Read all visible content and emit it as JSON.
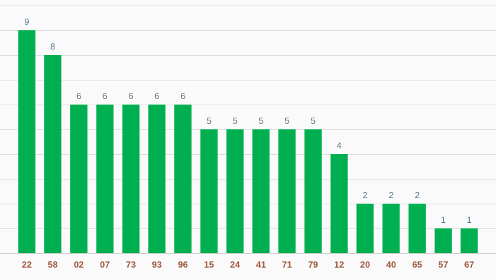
{
  "chart_data": {
    "type": "bar",
    "title": "",
    "xlabel": "",
    "ylabel": "",
    "categories": [
      "22",
      "58",
      "02",
      "07",
      "73",
      "93",
      "96",
      "15",
      "24",
      "41",
      "71",
      "79",
      "12",
      "20",
      "40",
      "65",
      "57",
      "67"
    ],
    "values": [
      9,
      8,
      6,
      6,
      6,
      6,
      6,
      5,
      5,
      5,
      5,
      5,
      4,
      2,
      2,
      2,
      1,
      1
    ],
    "ylim": [
      0,
      10
    ],
    "grid": true,
    "grid_step": 1,
    "legend": "none",
    "bar_color": "#00b050",
    "value_label_color": "#5b7a8c",
    "tick_label_color": "#a05a3f",
    "grid_color": "#dddddd",
    "background": "#fafafa"
  }
}
